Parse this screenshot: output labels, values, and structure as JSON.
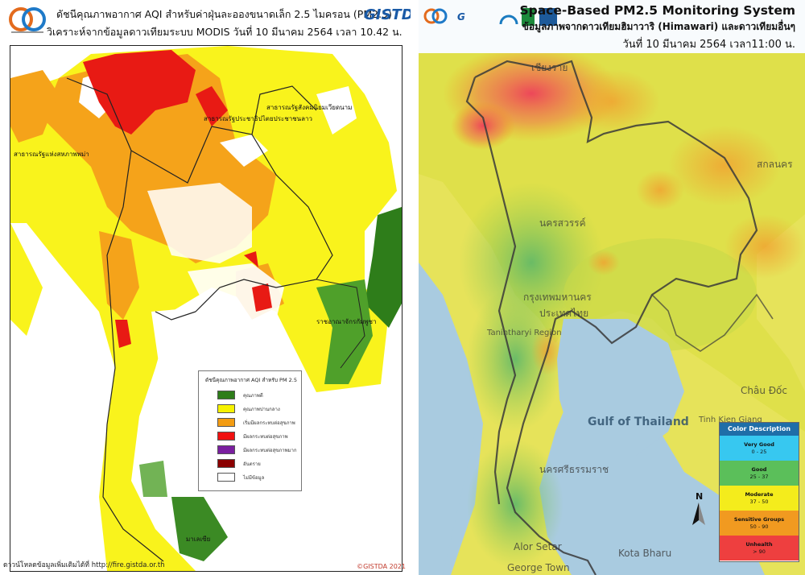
{
  "left_panel": {
    "title_line1": "ดัชนีคุณภาพอากาศ AQI สำหรับค่าฝุ่นละอองขนาดเล็ก 2.5 ไมครอน (PM2.5)",
    "title_line2": "วิเคราะห์จากข้อมูลดาวเทียมระบบ MODIS วันที่ 10 มีนาคม 2564 เวลา 10.42 น.",
    "brand": "GISTDA",
    "footer": "ดาวน์โหลดข้อมูลเพิ่มเติมได้ที่ http://fire.gistda.or.th",
    "copyright": "©GISTDA 2021",
    "map_labels": {
      "laos": "สาธารณรัฐประชาธิปไตยประชาชนลาว",
      "myanmar": "สาธารณรัฐแห่งสหภาพพม่า",
      "cambodia": "ราชอาณาจักรกัมพูชา",
      "vietnam": "สาธารณรัฐสังคมนิยมเวียดนาม",
      "malaysia": "มาเลเซีย"
    },
    "legend": {
      "title": "ดัชนีคุณภาพอากาศ AQI สำหรับ PM 2.5",
      "items": [
        {
          "label": "คุณภาพดี",
          "color": "#2e7d1a"
        },
        {
          "label": "คุณภาพปานกลาง",
          "color": "#f6f200"
        },
        {
          "label": "เริ่มมีผลกระทบต่อสุขภาพ",
          "color": "#f39c12"
        },
        {
          "label": "มีผลกระทบต่อสุขภาพ",
          "color": "#f01010"
        },
        {
          "label": "มีผลกระทบต่อสุขภาพมาก",
          "color": "#7a1fa0"
        },
        {
          "label": "อันตราย",
          "color": "#8b0000"
        },
        {
          "label": "ไม่มีข้อมูล",
          "color": "#ffffff"
        }
      ]
    }
  },
  "right_panel": {
    "title": "Space-Based PM2.5 Monitoring System",
    "subtitle": "ข้อมูลภาพจากดาวเทียมฮิมาวาริ (Himawari) และดาวเทียมอื่นๆ",
    "date": "วันที่ 10 มีนาคม 2564 เวลา11:00 น.",
    "map_labels": {
      "gulf": "Gulf of Thailand",
      "chiangmai": "เชียงราย",
      "nakhonsawan": "นครสวรรค์",
      "bangkok": "กรุงเทพมหานคร",
      "thailand": "ประเทศไทย",
      "tanintharyi": "Tanintharyi Region",
      "nakhonsi": "นครศรีธรรมราช",
      "kohkong": "Tinh Kien Giang",
      "alorsetar": "Alor Setar",
      "kotabharu": "Kota Bharu",
      "georgetown": "George Town",
      "sakon": "สกลนคร",
      "chaudoc": "Châu Đốc"
    },
    "legend": {
      "title": "Color Description",
      "items": [
        {
          "label": "Very Good",
          "range": "0 - 25",
          "color": "#37c8f0"
        },
        {
          "label": "Good",
          "range": "25 - 37",
          "color": "#5bbf5a"
        },
        {
          "label": "Moderate",
          "range": "37 - 50",
          "color": "#f4ec1c"
        },
        {
          "label": "Sensitive Groups",
          "range": "50 - 90",
          "color": "#f19a20"
        },
        {
          "label": "Unhealth",
          "range": "> 90",
          "color": "#ee3f3f"
        }
      ]
    },
    "north_label": "N"
  }
}
